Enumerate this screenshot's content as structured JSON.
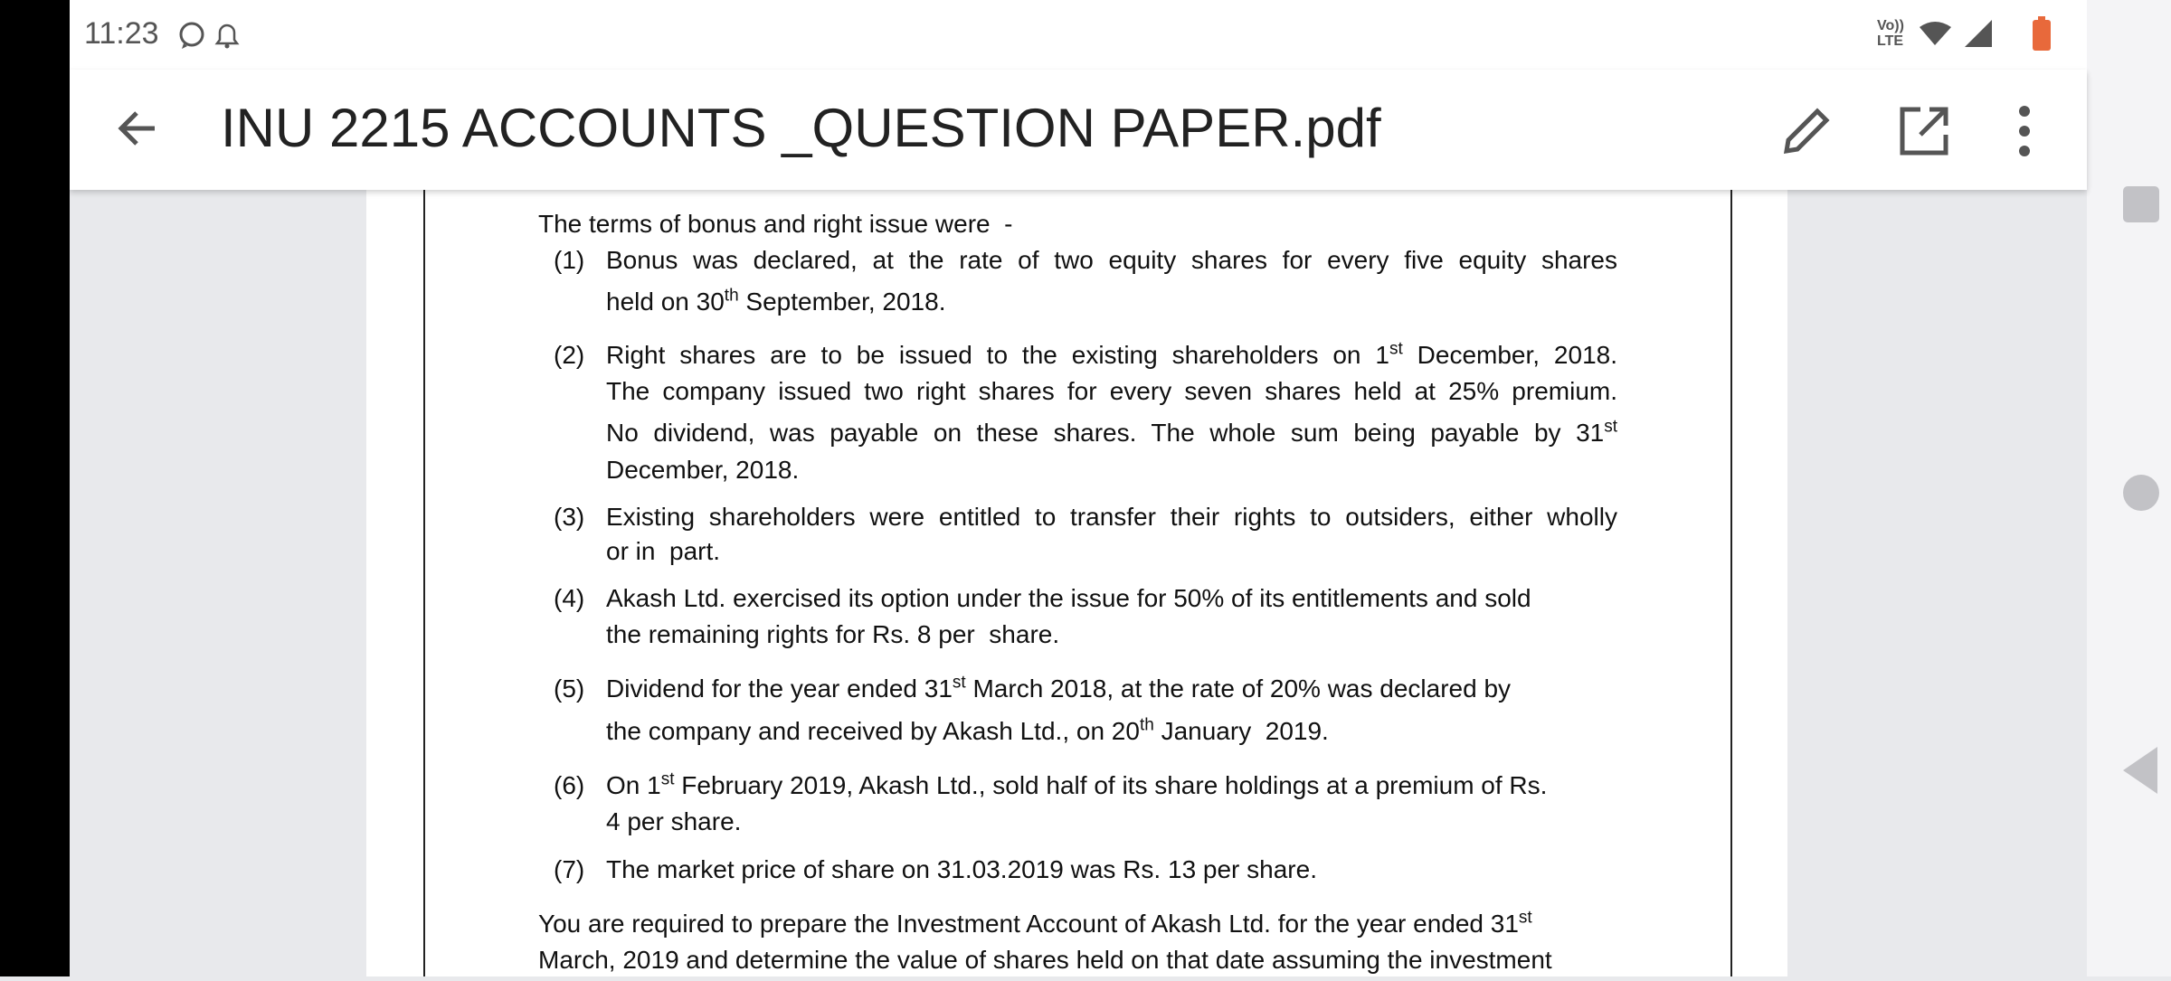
{
  "status": {
    "time": "11:23",
    "network": "Vo)) LTE"
  },
  "header": {
    "title": "INU 2215 ACCOUNTS _QUESTION PAPER.pdf"
  },
  "document": {
    "intro": [
      {
        "text": "The terms of bonus and right issue were  -"
      }
    ],
    "items": [
      {
        "number": "(1)",
        "lines": [
          [
            {
              "text": "Bonus was declared, at the rate of two equity shares for every five equity shares"
            }
          ],
          [
            {
              "text": "held on 30"
            },
            {
              "sup": "th"
            },
            {
              "text": " September, 2018."
            }
          ]
        ]
      },
      {
        "number": "(2)",
        "lines": [
          [
            {
              "text": "Right shares are to be issued to the existing shareholders on 1"
            },
            {
              "sup": "st"
            },
            {
              "text": " December, 2018."
            }
          ],
          [
            {
              "text": "The company issued two right shares for every seven shares held at 25% premium."
            }
          ],
          [
            {
              "text": "No dividend, was payable on these shares. The whole sum being payable by 31"
            },
            {
              "sup": "st"
            }
          ],
          [
            {
              "text": "December, 2018."
            }
          ]
        ]
      },
      {
        "number": "(3)",
        "lines": [
          [
            {
              "text": "Existing shareholders were entitled to transfer their rights to outsiders, either wholly"
            }
          ],
          [
            {
              "text": "or in  part."
            }
          ]
        ]
      },
      {
        "number": "(4)",
        "lines": [
          [
            {
              "text": "Akash Ltd. exercised its option under the issue for 50% of its entitlements and sold"
            }
          ],
          [
            {
              "text": "the remaining rights for Rs. 8 per  share."
            }
          ]
        ]
      },
      {
        "number": "(5)",
        "lines": [
          [
            {
              "text": "Dividend for the year ended 31"
            },
            {
              "sup": "st"
            },
            {
              "text": " March 2018, at the rate of 20% was declared by"
            }
          ],
          [
            {
              "text": "the company and received by Akash Ltd., on 20"
            },
            {
              "sup": "th"
            },
            {
              "text": " January  2019."
            }
          ]
        ]
      },
      {
        "number": "(6)",
        "lines": [
          [
            {
              "text": "On 1"
            },
            {
              "sup": "st"
            },
            {
              "text": " February 2019, Akash Ltd., sold half of its share holdings at a premium of Rs."
            }
          ],
          [
            {
              "text": "4 per share."
            }
          ]
        ]
      },
      {
        "number": "(7)",
        "lines": [
          [
            {
              "text": "The market price of share on 31.03.2019 was Rs. 13 per share."
            }
          ]
        ]
      }
    ],
    "closing": [
      [
        {
          "text": "You are required to prepare the Investment Account of Akash Ltd. for the year ended 31"
        },
        {
          "sup": "st"
        }
      ],
      [
        {
          "text": "March, 2019 and determine the value of shares held on that date assuming the investment"
        }
      ]
    ]
  }
}
